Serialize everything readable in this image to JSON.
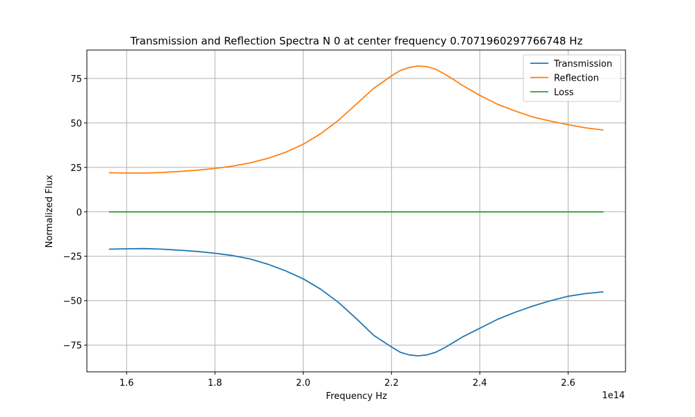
{
  "chart_data": {
    "type": "line",
    "title": "Transmission and Reflection Spectra N 0 at center frequency 0.7071960297766748 Hz",
    "xlabel": "Frequency Hz",
    "ylabel": "Normalized Flux",
    "x_offset_label": "1e14",
    "xlim": [
      1.51,
      2.73
    ],
    "ylim": [
      -90,
      91
    ],
    "xticks": [
      1.6,
      1.8,
      2.0,
      2.2,
      2.4,
      2.6
    ],
    "xtick_labels": [
      "1.6",
      "1.8",
      "2.0",
      "2.2",
      "2.4",
      "2.6"
    ],
    "yticks": [
      -75,
      -50,
      -25,
      0,
      25,
      50,
      75
    ],
    "ytick_labels": [
      "−75",
      "−50",
      "−25",
      "0",
      "25",
      "50",
      "75"
    ],
    "grid": true,
    "legend_position": "top-right",
    "x": [
      1.56,
      1.6,
      1.64,
      1.68,
      1.72,
      1.76,
      1.8,
      1.84,
      1.88,
      1.92,
      1.96,
      2.0,
      2.04,
      2.08,
      2.12,
      2.16,
      2.2,
      2.22,
      2.24,
      2.26,
      2.28,
      2.3,
      2.32,
      2.34,
      2.36,
      2.4,
      2.44,
      2.48,
      2.52,
      2.56,
      2.6,
      2.64,
      2.68
    ],
    "series": [
      {
        "name": "Transmission",
        "color": "#1f77b4",
        "values": [
          -21,
          -20.8,
          -20.7,
          -21,
          -21.6,
          -22.3,
          -23.3,
          -24.6,
          -26.5,
          -29.5,
          -33.2,
          -37.7,
          -43.6,
          -51,
          -60,
          -69.5,
          -76,
          -79,
          -80.5,
          -81,
          -80.5,
          -79,
          -76.5,
          -73.5,
          -70.5,
          -65.5,
          -60.5,
          -56.5,
          -53,
          -50,
          -47.5,
          -46,
          -45
        ]
      },
      {
        "name": "Reflection",
        "color": "#ff7f0e",
        "values": [
          22,
          21.8,
          21.8,
          22.1,
          22.7,
          23.4,
          24.4,
          25.7,
          27.5,
          30.1,
          33.5,
          38,
          44,
          51.5,
          60.5,
          69.5,
          76.5,
          79.5,
          81.2,
          82,
          81.7,
          80.2,
          77.5,
          74.5,
          71.2,
          65.5,
          60.5,
          56.7,
          53.3,
          51,
          49,
          47.2,
          46
        ]
      },
      {
        "name": "Loss",
        "color": "#2ca02c",
        "values": [
          0,
          0,
          0,
          0,
          0,
          0,
          0,
          0,
          0,
          0,
          0,
          0,
          0,
          0,
          0,
          0,
          0,
          0,
          0,
          0,
          0,
          0,
          0,
          0,
          0,
          0,
          0,
          0,
          0,
          0,
          0,
          0,
          0
        ]
      }
    ]
  }
}
